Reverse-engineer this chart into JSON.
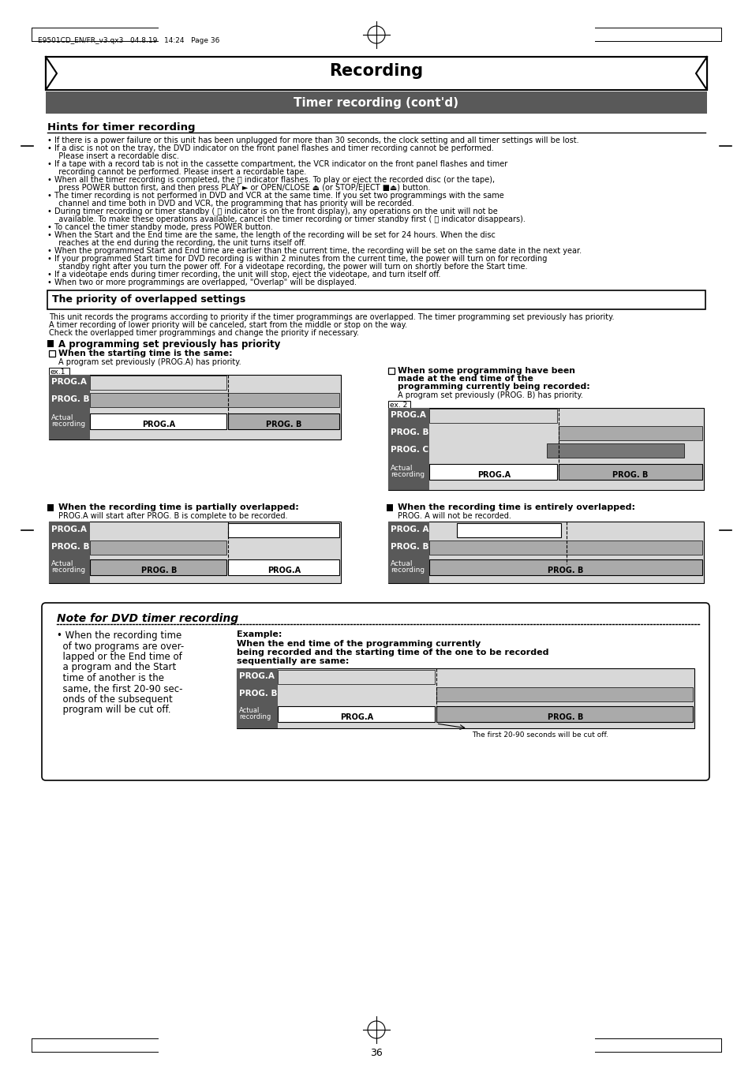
{
  "page_header": "E9501CD_EN/FR_v3.qx3   04.8.19   14:24   Page 36",
  "title": "Recording",
  "subtitle": "Timer recording (cont'd)",
  "section1_title": "Hints for timer recording",
  "section2_title": "The priority of overlapped settings",
  "section2_body_lines": [
    "This unit records the programs according to priority if the timer programmings are overlapped. The timer programming set previously has priority.",
    "A timer recording of lower priority will be canceled, start from the middle or stop on the way.",
    "Check the overlapped timer programmings and change the priority if necessary."
  ],
  "subsection1_title": "A programming set previously has priority",
  "ex1_title": "When the starting time is the same:",
  "ex1_sub": "A program set previously (PROG.A) has priority.",
  "ex2_line1": "When some programming have been",
  "ex2_line2": "made at the end time of the",
  "ex2_line3": "programming currently being recorded:",
  "ex2_sub": "A program set previously (PROG. B) has priority.",
  "ex3_title": "When the recording time is partially overlapped:",
  "ex3_sub": "PROG.A will start after PROG. B is complete to be recorded.",
  "ex4_title": "When the recording time is entirely overlapped:",
  "ex4_sub": "PROG. A will not be recorded.",
  "note_title": "Note for DVD timer recording",
  "note_body_lines": [
    "• When the recording time",
    "  of two programs are over-",
    "  lapped or the End time of",
    "  a program and the Start",
    "  time of another is the",
    "  same, the first 20-90 sec-",
    "  onds of the subsequent",
    "  program will be cut off."
  ],
  "note_example_title": "Example:",
  "note_example_line1": "When the end time of the programming currently",
  "note_example_line2": "being recorded and the starting time of the one to be recorded",
  "note_example_line3": "sequentially are same:",
  "note_cutoff": "The first 20-90 seconds will be cut off.",
  "page_number": "36",
  "hints": [
    "If there is a power failure or this unit has been unplugged for more than 30 seconds, the clock setting and all timer settings will be lost.",
    "If a disc is not on the tray, the DVD indicator on the front panel flashes and timer recording cannot be performed.|  Please insert a recordable disc.",
    "If a tape with a record tab is not in the cassette compartment, the VCR indicator on the front panel flashes and timer|  recording cannot be performed. Please insert a recordable tape.",
    "When all the timer recording is completed, the ⓨ indicator flashes. To play or eject the recorded disc (or the tape),|  press POWER button first, and then press PLAY ► or OPEN/CLOSE ⏏ (or STOP/EJECT ■⏏) button.",
    "The timer recording is not performed in DVD and VCR at the same time. If you set two programmings with the same|  channel and time both in DVD and VCR, the programming that has priority will be recorded.",
    "During timer recording or timer standby ( ⓨ indicator is on the front display), any operations on the unit will not be|  available. To make these operations available, cancel the timer recording or timer standby first ( ⓨ indicator disappears).",
    "To cancel the timer standby mode, press POWER button.",
    "When the Start and the End time are the same, the length of the recording will be set for 24 hours. When the disc|  reaches at the end during the recording, the unit turns itself off.",
    "When the programmed Start and End time are earlier than the current time, the recording will be set on the same date in the next year.",
    "If your programmed Start time for DVD recording is within 2 minutes from the current time, the power will turn on for recording|  standby right after you turn the power off. For a videotape recording, the power will turn on shortly before the Start time.",
    "If a videotape ends during timer recording, the unit will stop, eject the videotape, and turn itself off.",
    "When two or more programmings are overlapped, \"Overlap\" will be displayed."
  ]
}
